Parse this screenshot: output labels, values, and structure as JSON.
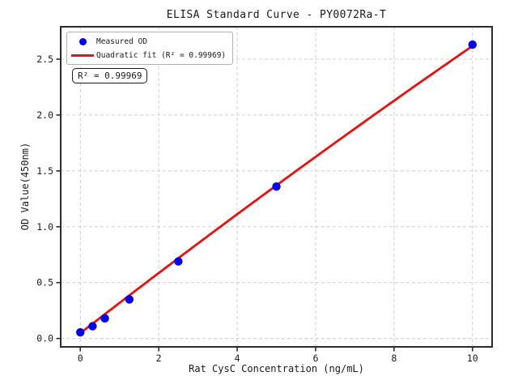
{
  "chart_data": {
    "type": "scatter",
    "title": "ELISA Standard Curve - PY0072Ra-T",
    "xlabel": "Rat CysC Concentration (ng/mL)",
    "ylabel": "OD Value(450nm)",
    "xlim": [
      -0.5,
      10.5
    ],
    "ylim": [
      -0.075,
      2.79
    ],
    "grid": true,
    "x_ticks": [
      0,
      2,
      4,
      6,
      8,
      10
    ],
    "x_tick_labels": [
      "0",
      "2",
      "4",
      "6",
      "8",
      "10"
    ],
    "y_ticks": [
      0.0,
      0.5,
      1.0,
      1.5,
      2.0,
      2.5
    ],
    "y_tick_labels": [
      "0.0",
      "0.5",
      "1.0",
      "1.5",
      "2.0",
      "2.5"
    ],
    "series": [
      {
        "name": "Measured OD",
        "type": "scatter",
        "color": "#0000ee",
        "x": [
          0,
          0.3125,
          0.625,
          1.25,
          2.5,
          5,
          10
        ],
        "y": [
          0.055,
          0.11,
          0.18,
          0.35,
          0.69,
          1.36,
          2.63
        ]
      },
      {
        "name": "Quadratic fit (R² = 0.99969)",
        "type": "line",
        "color": "#ee0e0e",
        "fit": {
          "kind": "quadratic",
          "a": -0.0015,
          "b": 0.272,
          "c": 0.048,
          "x_start": 0,
          "x_end": 10
        }
      }
    ],
    "legend": {
      "position": "upper left"
    },
    "annotation": {
      "text": "R² = 0.99969"
    },
    "colors": {
      "scatter": "#0000ee",
      "fit": "#ee0e0e",
      "grid": "#cfcfcf",
      "spine": "#2b2b2b",
      "text": "#1a1a1a",
      "legend_border": "#b3b3b3"
    }
  }
}
